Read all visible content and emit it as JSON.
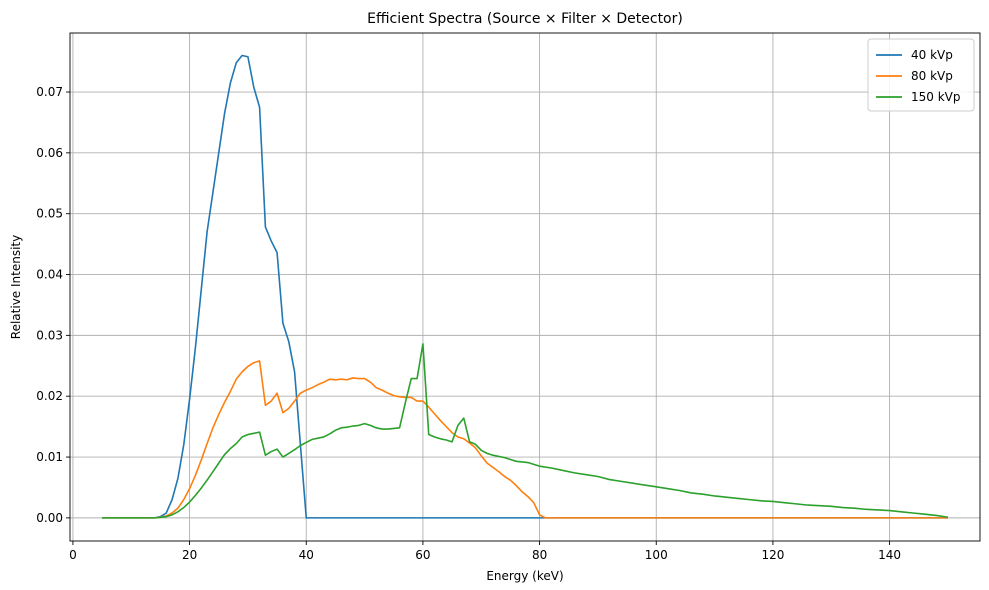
{
  "chart_data": {
    "type": "line",
    "title": "Efficient Spectra (Source × Filter × Detector)",
    "xlabel": "Energy (keV)",
    "ylabel": "Relative Intensity",
    "xlim": [
      -0.5,
      155.5
    ],
    "ylim": [
      -0.0038,
      0.0797
    ],
    "xticks": [
      0,
      20,
      40,
      60,
      80,
      100,
      120,
      140
    ],
    "yticks": [
      0.0,
      0.01,
      0.02,
      0.03,
      0.04,
      0.05,
      0.06,
      0.07
    ],
    "xtick_labels": [
      "0",
      "20",
      "40",
      "60",
      "80",
      "100",
      "120",
      "140"
    ],
    "ytick_labels": [
      "0.00",
      "0.01",
      "0.02",
      "0.03",
      "0.04",
      "0.05",
      "0.06",
      "0.07"
    ],
    "grid": true,
    "legend_position": "top-right",
    "series": [
      {
        "name": "40 kVp",
        "color": "#1f77b4",
        "x": [
          5,
          14,
          15,
          16,
          17,
          18,
          19,
          20,
          21,
          22,
          23,
          24,
          25,
          26,
          27,
          28,
          29,
          30,
          31,
          32,
          33,
          34,
          35,
          36,
          37,
          38,
          39,
          40,
          41,
          50,
          60,
          70,
          80,
          90,
          100,
          110,
          120,
          130,
          140,
          150
        ],
        "y": [
          0,
          0,
          0.0002,
          0.0008,
          0.003,
          0.0065,
          0.012,
          0.0195,
          0.028,
          0.0375,
          0.047,
          0.0535,
          0.06,
          0.0665,
          0.0715,
          0.0748,
          0.076,
          0.0758,
          0.0708,
          0.0675,
          0.0478,
          0.0455,
          0.0436,
          0.032,
          0.029,
          0.024,
          0.012,
          0,
          0,
          0,
          0,
          0,
          0,
          0,
          0,
          0,
          0,
          0,
          0,
          0
        ]
      },
      {
        "name": "80 kVp",
        "color": "#ff7f0e",
        "x": [
          5,
          14,
          15,
          16,
          17,
          18,
          19,
          20,
          21,
          22,
          23,
          24,
          25,
          26,
          27,
          28,
          29,
          30,
          31,
          32,
          33,
          34,
          35,
          36,
          37,
          38,
          39,
          40,
          41,
          42,
          43,
          44,
          45,
          46,
          47,
          48,
          49,
          50,
          51,
          52,
          53,
          54,
          55,
          56,
          57,
          58,
          59,
          60,
          61,
          62,
          63,
          64,
          65,
          66,
          67,
          68,
          69,
          70,
          71,
          72,
          73,
          74,
          75,
          76,
          77,
          78,
          79,
          80,
          81,
          90,
          100,
          110,
          120,
          130,
          140,
          150
        ],
        "y": [
          0,
          0,
          0.0001,
          0.0003,
          0.0008,
          0.0016,
          0.003,
          0.0048,
          0.007,
          0.0095,
          0.0122,
          0.0148,
          0.017,
          0.019,
          0.0208,
          0.0228,
          0.024,
          0.0249,
          0.0255,
          0.0258,
          0.0185,
          0.0192,
          0.0205,
          0.0173,
          0.018,
          0.0192,
          0.0205,
          0.021,
          0.0214,
          0.0219,
          0.0223,
          0.0228,
          0.0227,
          0.0228,
          0.0227,
          0.023,
          0.0229,
          0.0229,
          0.0223,
          0.0214,
          0.021,
          0.0205,
          0.0201,
          0.0199,
          0.0198,
          0.0198,
          0.0192,
          0.0192,
          0.0182,
          0.0171,
          0.016,
          0.015,
          0.014,
          0.0133,
          0.013,
          0.0123,
          0.0115,
          0.0102,
          0.009,
          0.0083,
          0.0076,
          0.0068,
          0.0062,
          0.0053,
          0.0043,
          0.0035,
          0.0025,
          0.0005,
          0,
          0,
          0,
          0,
          0,
          0,
          0,
          0
        ]
      },
      {
        "name": "150 kVp",
        "color": "#2ca02c",
        "x": [
          5,
          14,
          15,
          16,
          17,
          18,
          19,
          20,
          21,
          22,
          23,
          24,
          25,
          26,
          27,
          28,
          29,
          30,
          31,
          32,
          33,
          34,
          35,
          36,
          37,
          38,
          39,
          40,
          41,
          42,
          43,
          44,
          45,
          46,
          47,
          48,
          49,
          50,
          51,
          52,
          53,
          54,
          55,
          56,
          57,
          58,
          59,
          60,
          61,
          62,
          63,
          64,
          65,
          66,
          67,
          68,
          69,
          70,
          71,
          72,
          73,
          74,
          75,
          76,
          77,
          78,
          79,
          80,
          82,
          84,
          86,
          88,
          90,
          92,
          94,
          96,
          98,
          100,
          102,
          104,
          106,
          108,
          110,
          112,
          114,
          116,
          118,
          120,
          122,
          124,
          126,
          128,
          130,
          132,
          134,
          136,
          138,
          140,
          142,
          144,
          146,
          148,
          150
        ],
        "y": [
          0,
          0,
          0.0001,
          0.0002,
          0.0005,
          0.001,
          0.0017,
          0.0026,
          0.0037,
          0.0049,
          0.0062,
          0.0076,
          0.009,
          0.0104,
          0.0114,
          0.0122,
          0.0133,
          0.0137,
          0.0139,
          0.0141,
          0.0103,
          0.0109,
          0.0113,
          0.01,
          0.0106,
          0.0112,
          0.0119,
          0.0124,
          0.0129,
          0.0131,
          0.0133,
          0.0138,
          0.0144,
          0.0148,
          0.0149,
          0.0151,
          0.0152,
          0.0155,
          0.0152,
          0.0148,
          0.0146,
          0.0146,
          0.0147,
          0.0148,
          0.019,
          0.0229,
          0.0229,
          0.0286,
          0.0137,
          0.0133,
          0.013,
          0.0128,
          0.0125,
          0.0152,
          0.0164,
          0.0125,
          0.0121,
          0.0111,
          0.0106,
          0.0103,
          0.0101,
          0.0099,
          0.0096,
          0.0093,
          0.0092,
          0.0091,
          0.0088,
          0.0085,
          0.0082,
          0.0078,
          0.0074,
          0.0071,
          0.0068,
          0.0063,
          0.006,
          0.0057,
          0.0054,
          0.0051,
          0.0048,
          0.0045,
          0.0041,
          0.0039,
          0.0036,
          0.0034,
          0.0032,
          0.003,
          0.0028,
          0.0027,
          0.0025,
          0.0023,
          0.0021,
          0.002,
          0.0019,
          0.0017,
          0.0016,
          0.0014,
          0.0013,
          0.0012,
          0.001,
          0.0008,
          0.0006,
          0.0004,
          0.0001
        ]
      }
    ]
  }
}
